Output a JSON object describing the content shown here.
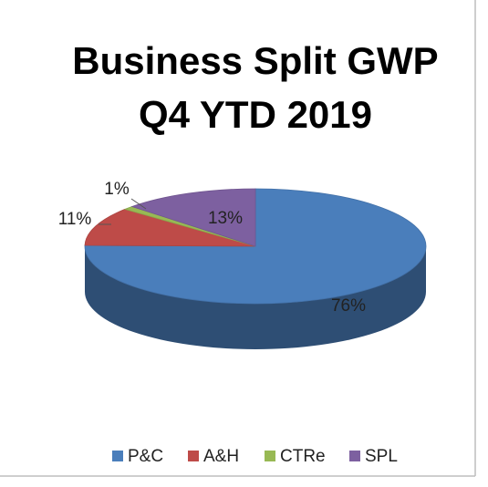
{
  "chart_data": {
    "type": "pie3d",
    "title": [
      "Business Split GWP",
      "Q4 YTD 2019"
    ],
    "categories": [
      "P&C",
      "A&H",
      "CTRe",
      "SPL"
    ],
    "values": [
      76,
      11,
      1,
      13
    ],
    "value_labels": [
      "76%",
      "11%",
      "1%",
      "13%"
    ],
    "colors": [
      "#4a7ebb",
      "#be4b48",
      "#98b954",
      "#7d60a0"
    ],
    "legend": "bottom"
  }
}
